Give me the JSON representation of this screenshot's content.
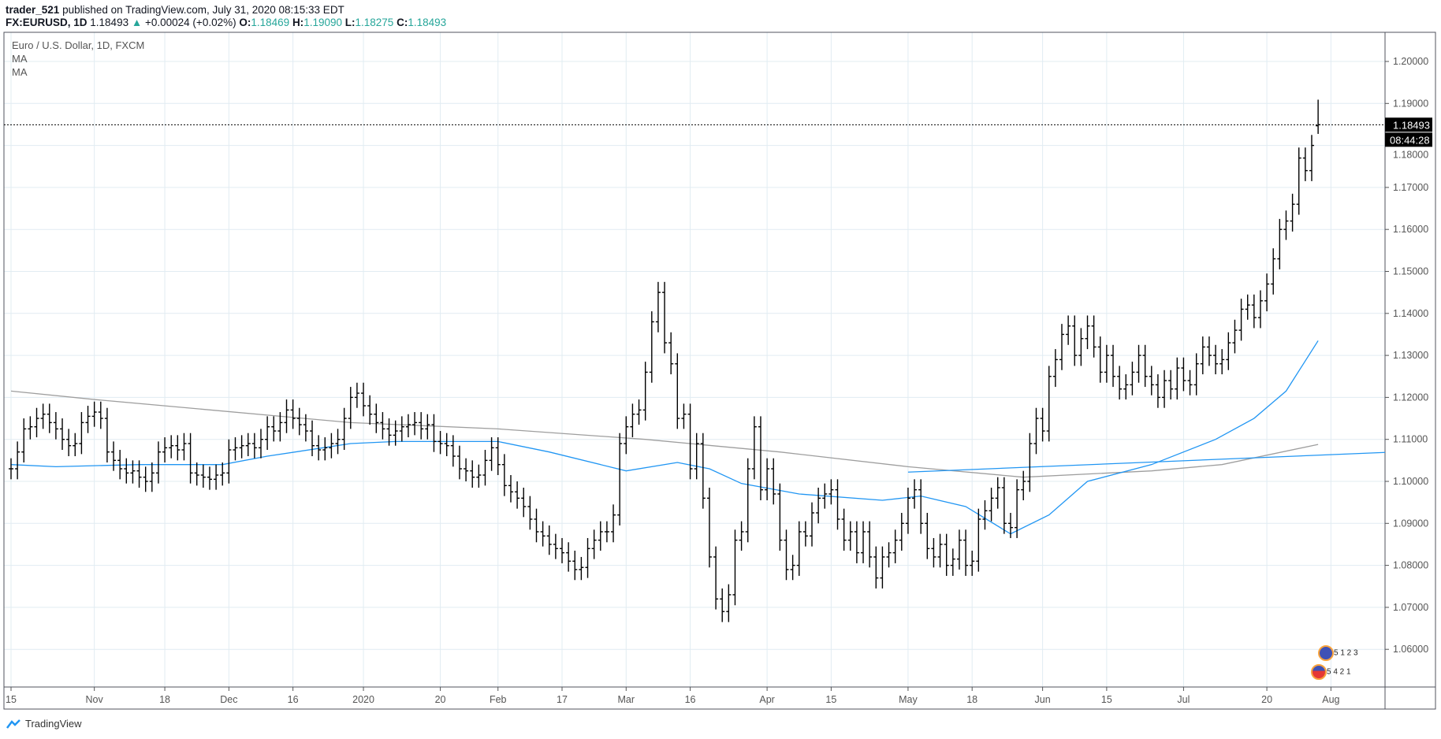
{
  "header": {
    "author": "trader_521",
    "published": "published on TradingView.com, July 31, 2020 08:15:33 EDT",
    "symbol": "FX:EURUSD, 1D",
    "last": "1.18493",
    "change": "+0.00024 (+0.02%)",
    "o_label": "O:",
    "o": "1.18469",
    "h_label": "H:",
    "h": "1.19090",
    "l_label": "L:",
    "l": "1.18275",
    "c_label": "C:",
    "c": "1.18493"
  },
  "legend": {
    "title": "Euro / U.S. Dollar, 1D, FXCM",
    "ma1": "MA",
    "ma2": "MA"
  },
  "price_label": "1.18493",
  "countdown": "08:44:28",
  "events": {
    "eur": "5 1 2 3",
    "usd": "5 4 2 1"
  },
  "footer": {
    "brand": "TradingView"
  },
  "colors": {
    "bars": "#000000",
    "ma_fast": "#2196f3",
    "ma_slow": "#9e9e9e",
    "grid": "#e1ecf2",
    "up": "#26a69a"
  },
  "chart_data": {
    "type": "ohlc",
    "title": "Euro / U.S. Dollar, 1D, FXCM",
    "ylim": [
      1.05,
      1.205
    ],
    "y_ticks": [
      "1.06000",
      "1.07000",
      "1.08000",
      "1.09000",
      "1.10000",
      "1.11000",
      "1.12000",
      "1.13000",
      "1.14000",
      "1.15000",
      "1.16000",
      "1.17000",
      "1.18000",
      "1.19000",
      "1.20000"
    ],
    "x_ticks": [
      {
        "label": "15",
        "bar": 0
      },
      {
        "label": "Nov",
        "bar": 13
      },
      {
        "label": "18",
        "bar": 24
      },
      {
        "label": "Dec",
        "bar": 34
      },
      {
        "label": "16",
        "bar": 44
      },
      {
        "label": "2020",
        "bar": 55
      },
      {
        "label": "20",
        "bar": 67
      },
      {
        "label": "Feb",
        "bar": 76
      },
      {
        "label": "17",
        "bar": 86
      },
      {
        "label": "Mar",
        "bar": 96
      },
      {
        "label": "16",
        "bar": 106
      },
      {
        "label": "Apr",
        "bar": 118
      },
      {
        "label": "15",
        "bar": 128
      },
      {
        "label": "May",
        "bar": 140
      },
      {
        "label": "18",
        "bar": 150
      },
      {
        "label": "Jun",
        "bar": 161
      },
      {
        "label": "15",
        "bar": 171
      },
      {
        "label": "Jul",
        "bar": 183
      },
      {
        "label": "20",
        "bar": 196
      },
      {
        "label": "Aug",
        "bar": 206
      }
    ],
    "bar_half_range": 0.0025,
    "last_bar": {
      "o": 1.18469,
      "h": 1.1909,
      "l": 1.18275,
      "c": 1.18493
    },
    "closes": [
      1.103,
      1.107,
      1.1125,
      1.113,
      1.115,
      1.116,
      1.114,
      1.1125,
      1.11,
      1.1085,
      1.109,
      1.114,
      1.1155,
      1.1165,
      1.115,
      1.107,
      1.105,
      1.103,
      1.102,
      1.1025,
      1.101,
      1.1,
      1.102,
      1.107,
      1.108,
      1.1085,
      1.1075,
      1.109,
      1.102,
      1.1015,
      1.101,
      1.1005,
      1.1015,
      1.102,
      1.1075,
      1.108,
      1.1085,
      1.109,
      1.108,
      1.11,
      1.113,
      1.112,
      1.114,
      1.117,
      1.115,
      1.1135,
      1.112,
      1.1085,
      1.1075,
      1.108,
      1.109,
      1.11,
      1.115,
      1.12,
      1.121,
      1.118,
      1.116,
      1.114,
      1.1125,
      1.111,
      1.112,
      1.113,
      1.1135,
      1.114,
      1.1125,
      1.1135,
      1.1095,
      1.109,
      1.1085,
      1.106,
      1.103,
      1.1025,
      1.101,
      1.1015,
      1.105,
      1.108,
      1.104,
      1.099,
      1.0975,
      1.096,
      1.094,
      1.091,
      1.088,
      1.087,
      1.085,
      1.084,
      1.083,
      1.081,
      1.079,
      1.0795,
      1.084,
      1.086,
      1.088,
      1.088,
      1.092,
      1.109,
      1.113,
      1.116,
      1.117,
      1.126,
      1.138,
      1.145,
      1.133,
      1.128,
      1.115,
      1.116,
      1.103,
      1.109,
      1.096,
      1.082,
      1.072,
      1.069,
      1.073,
      1.086,
      1.088,
      1.103,
      1.113,
      1.098,
      1.103,
      1.097,
      1.086,
      1.079,
      1.08,
      1.088,
      1.087,
      1.0925,
      1.096,
      1.097,
      1.098,
      1.091,
      1.086,
      1.088,
      1.083,
      1.088,
      1.082,
      1.077,
      1.082,
      1.083,
      1.086,
      1.09,
      1.096,
      1.098,
      1.09,
      1.084,
      1.082,
      1.085,
      1.08,
      1.0815,
      1.086,
      1.08,
      1.081,
      1.091,
      1.093,
      1.096,
      1.0985,
      1.09,
      1.089,
      1.098,
      1.1,
      1.109,
      1.115,
      1.112,
      1.125,
      1.129,
      1.135,
      1.137,
      1.13,
      1.134,
      1.137,
      1.132,
      1.126,
      1.13,
      1.125,
      1.122,
      1.123,
      1.126,
      1.13,
      1.125,
      1.123,
      1.12,
      1.124,
      1.122,
      1.127,
      1.124,
      1.123,
      1.128,
      1.132,
      1.13,
      1.128,
      1.129,
      1.133,
      1.136,
      1.141,
      1.142,
      1.139,
      1.143,
      1.147,
      1.153,
      1.16,
      1.162,
      1.166,
      1.177,
      1.174,
      1.18,
      1.18493
    ],
    "ma_fast": [
      [
        0,
        1.104
      ],
      [
        7,
        1.1035
      ],
      [
        20,
        1.104
      ],
      [
        33,
        1.104
      ],
      [
        40,
        1.106
      ],
      [
        53,
        1.109
      ],
      [
        60,
        1.1095
      ],
      [
        76,
        1.1095
      ],
      [
        84,
        1.107
      ],
      [
        96,
        1.1025
      ],
      [
        104,
        1.1045
      ],
      [
        109,
        1.103
      ],
      [
        114,
        1.0995
      ],
      [
        123,
        1.097
      ],
      [
        136,
        1.0955
      ],
      [
        142,
        1.0965
      ],
      [
        149,
        1.094
      ],
      [
        156,
        1.0875
      ],
      [
        162,
        1.092
      ],
      [
        168,
        1.1
      ],
      [
        178,
        1.104
      ],
      [
        188,
        1.11
      ],
      [
        194,
        1.115
      ],
      [
        199,
        1.1215
      ],
      [
        204,
        1.1335
      ]
    ],
    "ma_slow": [
      [
        0,
        1.1215
      ],
      [
        13,
        1.1195
      ],
      [
        53,
        1.114
      ],
      [
        76,
        1.1125
      ],
      [
        99,
        1.11
      ],
      [
        120,
        1.107
      ],
      [
        140,
        1.1035
      ],
      [
        158,
        1.101
      ],
      [
        178,
        1.1025
      ],
      [
        189,
        1.104
      ],
      [
        204,
        1.1088
      ]
    ],
    "trendline": [
      [
        140,
        1.1022
      ],
      [
        213,
        1.1068
      ]
    ]
  }
}
